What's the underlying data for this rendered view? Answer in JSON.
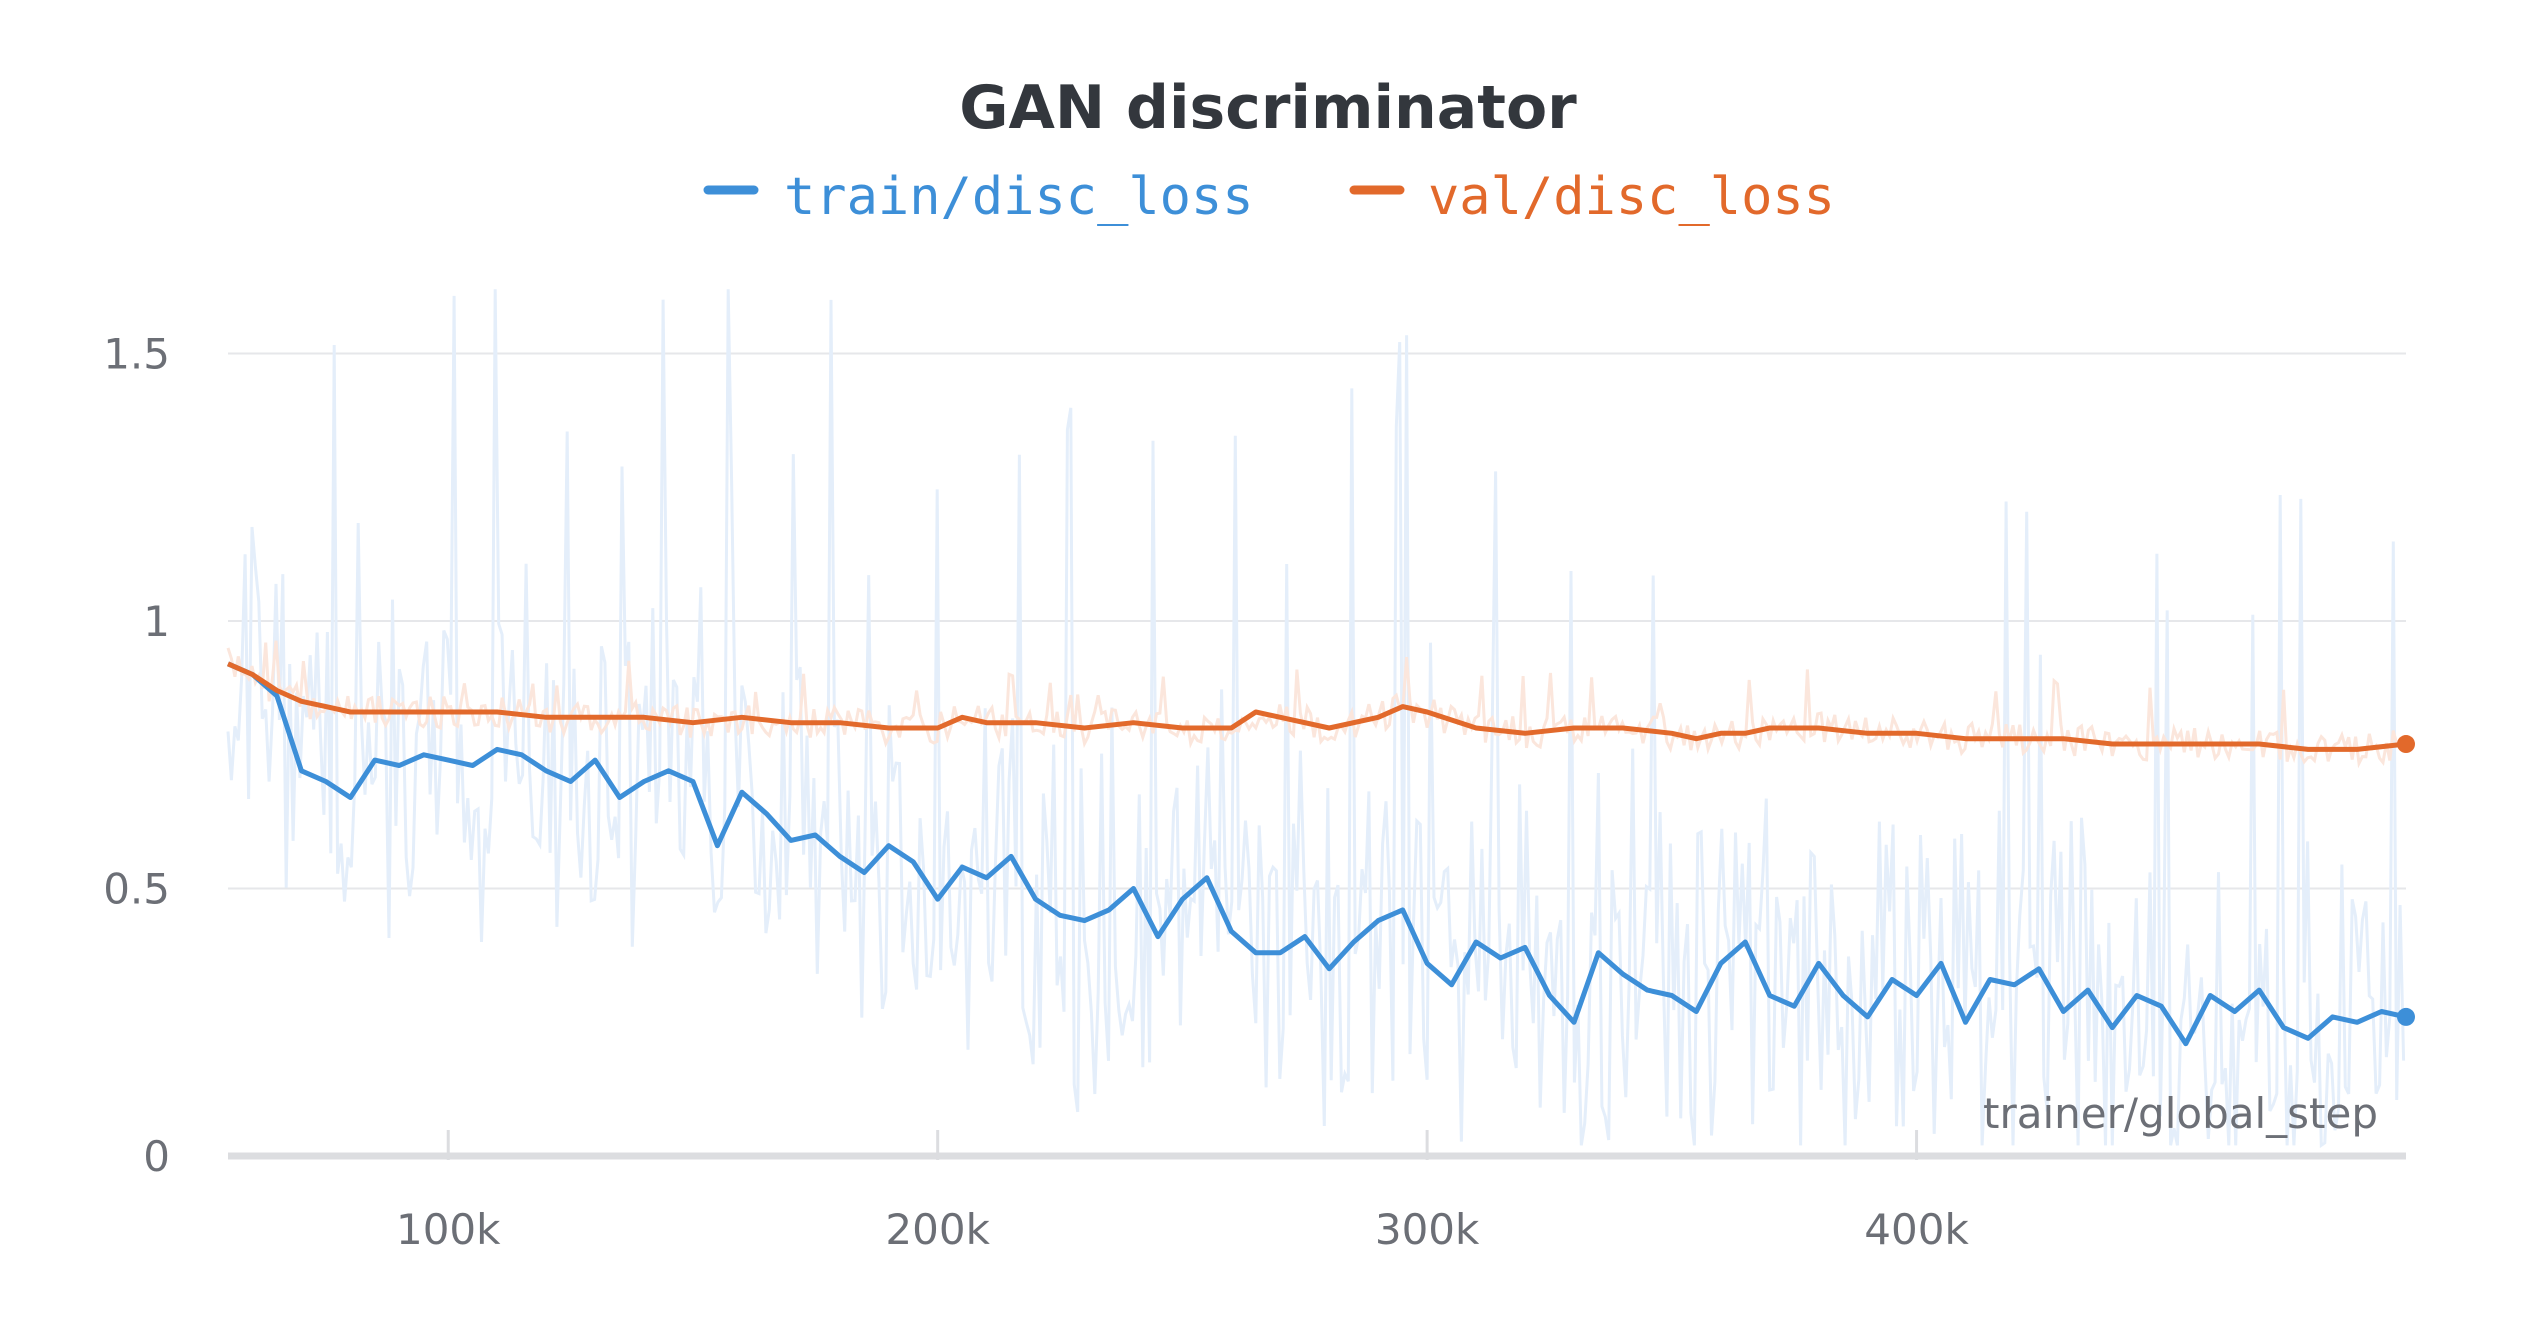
{
  "chart_data": {
    "type": "line",
    "title": "GAN discriminator",
    "xlabel": "trainer/global_step",
    "ylabel": "",
    "xlim": [
      55000,
      500000
    ],
    "ylim": [
      0,
      1.6
    ],
    "x_ticks": [
      100000,
      200000,
      300000,
      400000
    ],
    "x_tick_labels": [
      "100k",
      "200k",
      "300k",
      "400k"
    ],
    "y_ticks": [
      0,
      0.5,
      1,
      1.5
    ],
    "y_tick_labels": [
      "0",
      "0.5",
      "1",
      "1.5"
    ],
    "grid": true,
    "legend_position": "top-center",
    "colors": {
      "train": "#3d8fd8",
      "val": "#e2692b",
      "train_raw": "#e4eefa",
      "val_raw": "#fbe6dc"
    },
    "series": [
      {
        "name": "train/disc_loss",
        "color": "#3d8fd8",
        "x": [
          55000,
          60000,
          65000,
          70000,
          75000,
          80000,
          85000,
          90000,
          95000,
          100000,
          105000,
          110000,
          115000,
          120000,
          125000,
          130000,
          135000,
          140000,
          145000,
          150000,
          155000,
          160000,
          165000,
          170000,
          175000,
          180000,
          185000,
          190000,
          195000,
          200000,
          205000,
          210000,
          215000,
          220000,
          225000,
          230000,
          235000,
          240000,
          245000,
          250000,
          255000,
          260000,
          265000,
          270000,
          275000,
          280000,
          285000,
          290000,
          295000,
          300000,
          305000,
          310000,
          315000,
          320000,
          325000,
          330000,
          335000,
          340000,
          345000,
          350000,
          355000,
          360000,
          365000,
          370000,
          375000,
          380000,
          385000,
          390000,
          395000,
          400000,
          405000,
          410000,
          415000,
          420000,
          425000,
          430000,
          435000,
          440000,
          445000,
          450000,
          455000,
          460000,
          465000,
          470000,
          475000,
          480000,
          485000,
          490000,
          495000,
          500000
        ],
        "values": [
          0.92,
          0.9,
          0.86,
          0.72,
          0.7,
          0.67,
          0.74,
          0.73,
          0.75,
          0.74,
          0.73,
          0.76,
          0.75,
          0.72,
          0.7,
          0.74,
          0.67,
          0.7,
          0.72,
          0.7,
          0.58,
          0.68,
          0.64,
          0.59,
          0.6,
          0.56,
          0.53,
          0.58,
          0.55,
          0.48,
          0.54,
          0.52,
          0.56,
          0.48,
          0.45,
          0.44,
          0.46,
          0.5,
          0.41,
          0.48,
          0.52,
          0.42,
          0.38,
          0.38,
          0.41,
          0.35,
          0.4,
          0.44,
          0.46,
          0.36,
          0.32,
          0.4,
          0.37,
          0.39,
          0.3,
          0.25,
          0.38,
          0.34,
          0.31,
          0.3,
          0.27,
          0.36,
          0.4,
          0.3,
          0.28,
          0.36,
          0.3,
          0.26,
          0.33,
          0.3,
          0.36,
          0.25,
          0.33,
          0.32,
          0.35,
          0.27,
          0.31,
          0.24,
          0.3,
          0.28,
          0.21,
          0.3,
          0.27,
          0.31,
          0.24,
          0.22,
          0.26,
          0.25,
          0.27,
          0.26
        ]
      },
      {
        "name": "val/disc_loss",
        "color": "#e2692b",
        "x": [
          55000,
          60000,
          65000,
          70000,
          75000,
          80000,
          85000,
          90000,
          95000,
          100000,
          110000,
          120000,
          130000,
          140000,
          150000,
          160000,
          170000,
          180000,
          190000,
          200000,
          205000,
          210000,
          220000,
          230000,
          240000,
          250000,
          260000,
          265000,
          270000,
          280000,
          290000,
          295000,
          300000,
          310000,
          320000,
          330000,
          340000,
          350000,
          355000,
          360000,
          365000,
          370000,
          380000,
          390000,
          400000,
          410000,
          420000,
          430000,
          440000,
          450000,
          460000,
          470000,
          480000,
          490000,
          500000
        ],
        "values": [
          0.92,
          0.9,
          0.87,
          0.85,
          0.84,
          0.83,
          0.83,
          0.83,
          0.83,
          0.83,
          0.83,
          0.82,
          0.82,
          0.82,
          0.81,
          0.82,
          0.81,
          0.81,
          0.8,
          0.8,
          0.82,
          0.81,
          0.81,
          0.8,
          0.81,
          0.8,
          0.8,
          0.83,
          0.82,
          0.8,
          0.82,
          0.84,
          0.83,
          0.8,
          0.79,
          0.8,
          0.8,
          0.79,
          0.78,
          0.79,
          0.79,
          0.8,
          0.8,
          0.79,
          0.79,
          0.78,
          0.78,
          0.78,
          0.77,
          0.77,
          0.77,
          0.77,
          0.76,
          0.76,
          0.77
        ]
      }
    ]
  }
}
